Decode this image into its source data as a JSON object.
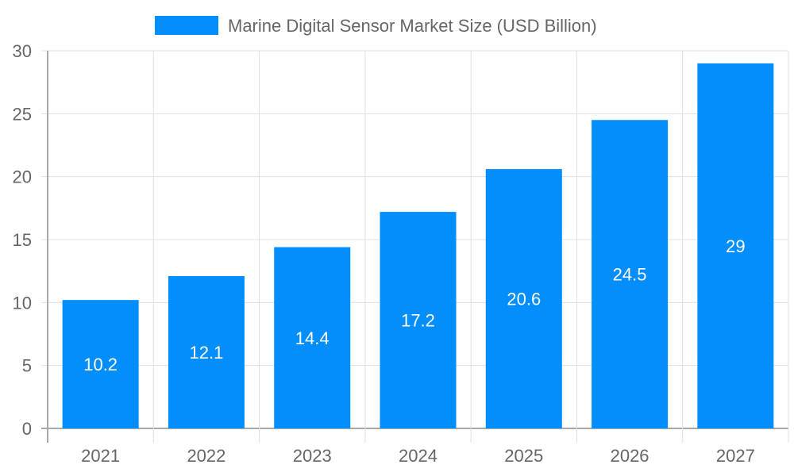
{
  "chart_data": {
    "type": "bar",
    "title": "",
    "categories": [
      "2021",
      "2022",
      "2023",
      "2024",
      "2025",
      "2026",
      "2027"
    ],
    "series": [
      {
        "name": "Marine Digital Sensor Market Size (USD Billion)",
        "values": [
          10.2,
          12.1,
          14.4,
          17.2,
          20.6,
          24.5,
          29
        ]
      }
    ],
    "ylim": [
      0,
      30
    ],
    "yticks": [
      0,
      5,
      10,
      15,
      20,
      25,
      30
    ],
    "xlabel": "",
    "ylabel": "",
    "grid": true,
    "legend": "top-center",
    "colors": {
      "bar": "#038efd",
      "grid": "#e0e0e0",
      "axis": "#a8a8a8",
      "text": "#666666",
      "label": "#ffffff"
    }
  }
}
